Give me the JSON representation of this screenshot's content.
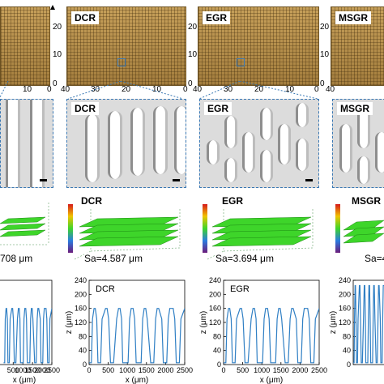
{
  "row1": {
    "panels": [
      {
        "label": "",
        "ticks_right": [
          "20",
          "10",
          "0"
        ],
        "ticks_bottom": [
          "10",
          "0"
        ]
      },
      {
        "label": "DCR",
        "ticks_right": [
          "20",
          "10",
          "0"
        ],
        "ticks_bottom": [
          "40",
          "30",
          "20",
          "10",
          "0"
        ]
      },
      {
        "label": "EGR",
        "ticks_right": [
          "20",
          "10",
          "0"
        ],
        "ticks_bottom": [
          "40",
          "30",
          "20",
          "10",
          "0"
        ]
      },
      {
        "label": "MSGR",
        "ticks_bottom": [
          "40"
        ]
      }
    ]
  },
  "row2": {
    "labels": [
      "DCR",
      "EGR",
      "MSGR"
    ]
  },
  "row3": {
    "labels": [
      "DCR",
      "EGR",
      "MSGR"
    ],
    "sa": [
      "708 μm",
      "Sa=4.587 μm",
      "Sa=3.694 μm",
      "Sa=4"
    ]
  },
  "row4": {
    "ylabel": "z (μm)",
    "xlabel": "x (μm)",
    "labels": [
      "DCR",
      "EGR"
    ],
    "yticks_a": [
      "240",
      "200",
      "160",
      "120",
      "80",
      "40",
      "0"
    ],
    "yticks_c": [
      "240",
      "200",
      "160",
      "120",
      "80",
      "40",
      "0"
    ],
    "xticks_partial": [
      "500",
      "1000",
      "1500",
      "2000",
      "2500"
    ],
    "xticks_full": [
      "0",
      "500",
      "1000",
      "1500",
      "2000",
      "2500"
    ]
  },
  "chart_data": {
    "type": "line",
    "xlabel": "x (μm)",
    "ylabel": "z (μm)",
    "xlim": [
      0,
      2500
    ],
    "ylim": [
      0,
      240
    ],
    "series": [
      {
        "x": [
          0,
          60,
          90,
          130,
          160,
          200,
          230,
          280,
          300,
          340,
          430,
          470,
          510,
          560,
          600,
          640,
          720,
          770,
          810,
          850,
          880,
          930,
          1020,
          1060,
          1100,
          1150,
          1190,
          1230,
          1320,
          1360,
          1400,
          1440,
          1480,
          1520,
          1610,
          1650,
          1690,
          1740,
          1780,
          1820,
          1900,
          1940,
          1980,
          2030,
          2070,
          2110,
          2200,
          2240,
          2280,
          2320,
          2360,
          2400,
          2500
        ],
        "values": [
          5,
          5,
          130,
          160,
          160,
          130,
          5,
          5,
          5,
          130,
          160,
          160,
          130,
          5,
          5,
          5,
          130,
          160,
          160,
          130,
          5,
          5,
          5,
          130,
          160,
          160,
          130,
          5,
          5,
          5,
          130,
          160,
          160,
          130,
          5,
          5,
          5,
          130,
          160,
          160,
          130,
          5,
          5,
          5,
          130,
          160,
          160,
          130,
          5,
          5,
          5,
          130,
          160
        ]
      }
    ]
  },
  "colors": {
    "profile": "#2f7fc4",
    "surface": "#3ed52a",
    "dash": "#3a78b4"
  }
}
